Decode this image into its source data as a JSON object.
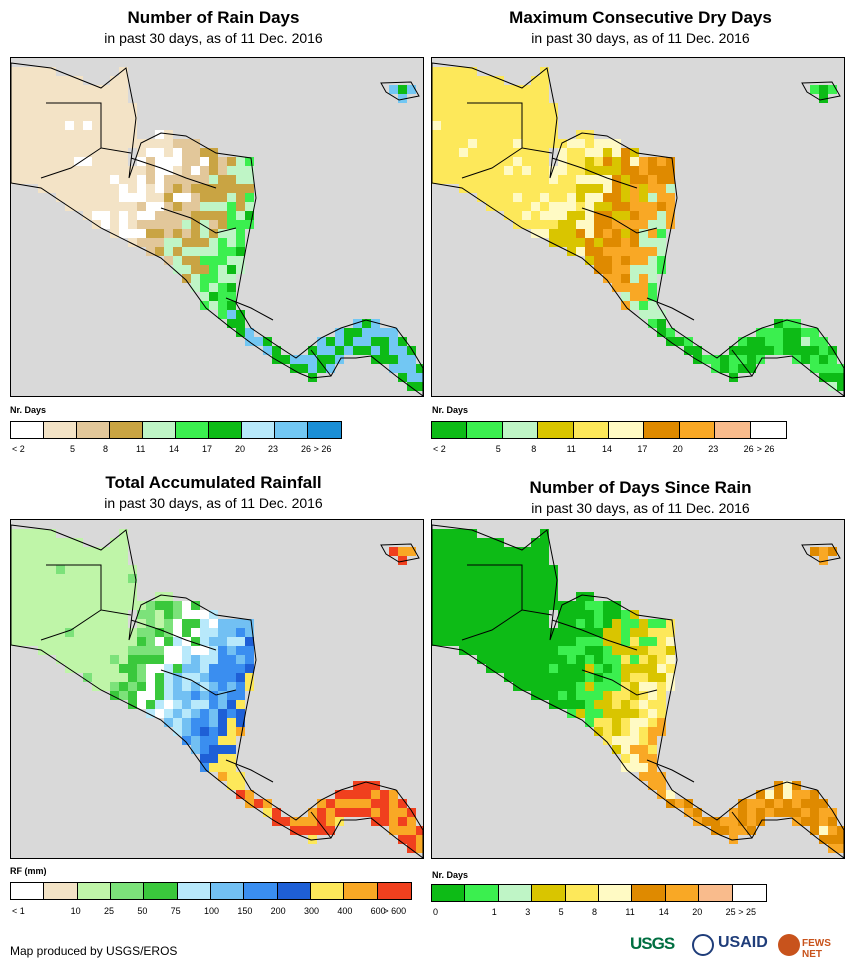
{
  "panels": [
    {
      "id": "rain-days",
      "title": "Number of Rain Days",
      "subtitle": "in past 30 days, as of 11 Dec. 2016",
      "legend_title": "Nr. Days",
      "legend_colors": [
        "#ffffff",
        "#f3e3c6",
        "#e2c79a",
        "#c9a443",
        "#bff5c6",
        "#3bef4f",
        "#0dbb16",
        "#b8e9fb",
        "#72c7f3",
        "#1b8fd6"
      ],
      "legend_ticks": [
        "< 2",
        "5",
        "8",
        "11",
        "14",
        "17",
        "20",
        "23",
        "26",
        "> 26"
      ],
      "palette_land": [
        "#f3e3c6",
        "#ffffff",
        "#e2c79a",
        "#c9a443",
        "#bff5c6",
        "#3bef4f",
        "#0dbb16",
        "#72c7f3"
      ]
    },
    {
      "id": "dry-days",
      "title": "Maximum Consecutive Dry Days",
      "subtitle": "in past 30 days, as of 11 Dec. 2016",
      "legend_title": "Nr. Days",
      "legend_colors": [
        "#0dbb16",
        "#3bef4f",
        "#bff5c6",
        "#d9c500",
        "#fde85a",
        "#fffac4",
        "#df8a00",
        "#f9a825",
        "#f9bb8c",
        "#ffffff"
      ],
      "legend_ticks": [
        "< 2",
        "5",
        "8",
        "11",
        "14",
        "17",
        "20",
        "23",
        "26",
        "> 26"
      ],
      "palette_land": [
        "#fde85a",
        "#fffac4",
        "#d9c500",
        "#df8a00",
        "#f9a825",
        "#bff5c6",
        "#3bef4f",
        "#0dbb16"
      ]
    },
    {
      "id": "total-rainfall",
      "title": "Total Accumulated Rainfall",
      "subtitle": "in past 30 days, as of 11 Dec. 2016",
      "legend_title": "RF (mm)",
      "legend_colors": [
        "#ffffff",
        "#f3e3c6",
        "#bff5a8",
        "#7ce27a",
        "#3ac83c",
        "#b8e9fb",
        "#72c0f3",
        "#3a8ef0",
        "#1e5fd6",
        "#fde85a",
        "#f9a825",
        "#f0401e"
      ],
      "legend_ticks": [
        "< 1",
        "10",
        "25",
        "50",
        "75",
        "100",
        "150",
        "200",
        "300",
        "400",
        "600",
        "> 600"
      ],
      "palette_land": [
        "#bff5a8",
        "#7ce27a",
        "#3ac83c",
        "#ffffff",
        "#b8e9fb",
        "#72c0f3",
        "#3a8ef0",
        "#1e5fd6",
        "#fde85a",
        "#f9a825",
        "#f0401e"
      ]
    },
    {
      "id": "days-since-rain",
      "title": "Number of Days Since Rain",
      "subtitle": "in past 30 days, as of 11 Dec. 2016",
      "legend_title": "Nr. Days",
      "legend_colors": [
        "#0dbb16",
        "#3bef4f",
        "#bff5c6",
        "#d9c500",
        "#fde85a",
        "#fffac4",
        "#df8a00",
        "#f9a825",
        "#f9bb8c",
        "#ffffff"
      ],
      "legend_ticks": [
        "0",
        "1",
        "3",
        "5",
        "8",
        "11",
        "14",
        "20",
        "25",
        "> 25"
      ],
      "palette_land": [
        "#0dbb16",
        "#0dbb16",
        "#3bef4f",
        "#d9c500",
        "#fde85a",
        "#fffac4",
        "#f9a825",
        "#df8a00"
      ]
    }
  ],
  "footer": "Map produced by USGS/EROS",
  "logos": {
    "usgs": "USGS",
    "usaid": "USAID",
    "fews": "FEWS NET"
  }
}
